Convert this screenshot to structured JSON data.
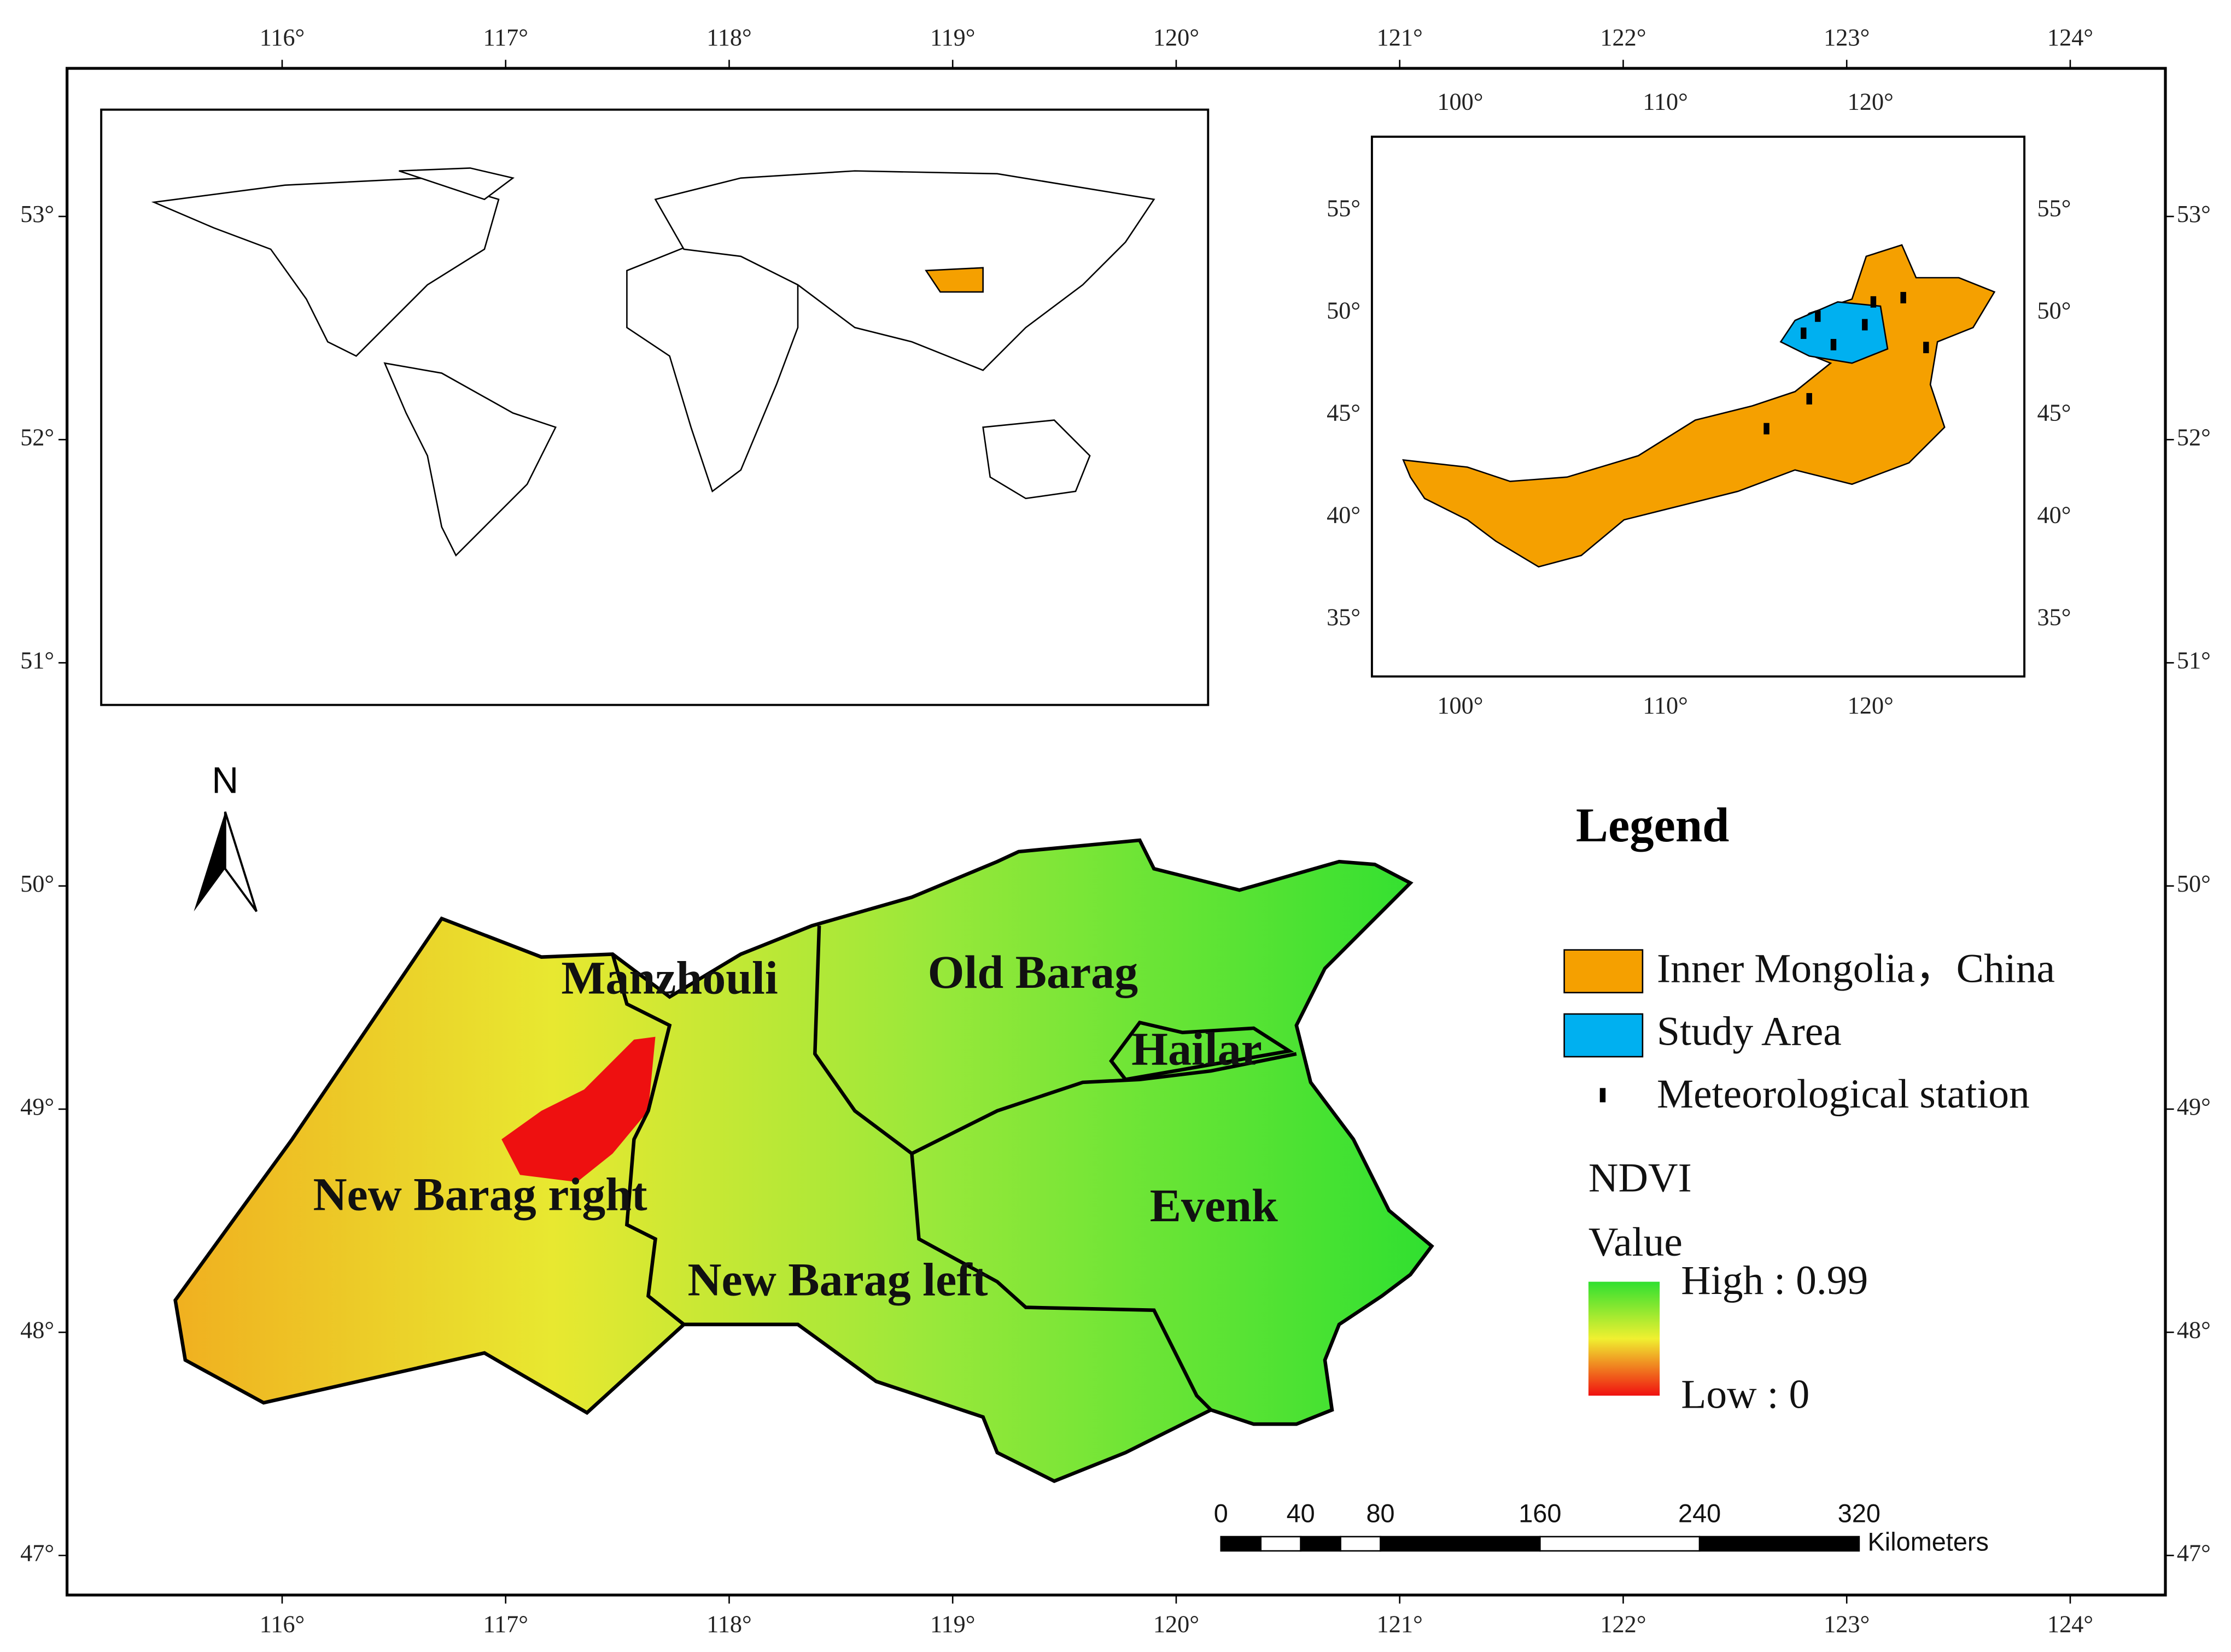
{
  "frame": {
    "lon_ticks": [
      "116°",
      "117°",
      "118°",
      "119°",
      "120°",
      "121°",
      "122°",
      "123°",
      "124°"
    ],
    "lat_ticks": [
      "53°",
      "52°",
      "51°",
      "50°",
      "49°",
      "48°",
      "47°"
    ]
  },
  "inset": {
    "lon_ticks": [
      "100°",
      "110°",
      "120°"
    ],
    "lat_ticks": [
      "55°",
      "50°",
      "45°",
      "40°",
      "35°"
    ]
  },
  "north_arrow": "N",
  "regions": [
    "Manzhouli",
    "Old Barag",
    "Hailar",
    "New Barag right",
    "Evenk",
    "New Barag left"
  ],
  "legend": {
    "title": "Legend",
    "items": [
      "Inner Mongolia，China",
      "Study Area",
      "Meteorological station"
    ],
    "ndvi_title": "NDVI",
    "value_title": "Value",
    "high": "High : 0.99",
    "low": "Low : 0"
  },
  "scale_bar": {
    "ticks": [
      0,
      40,
      80,
      160,
      240,
      320
    ],
    "unit": "Kilometers"
  }
}
